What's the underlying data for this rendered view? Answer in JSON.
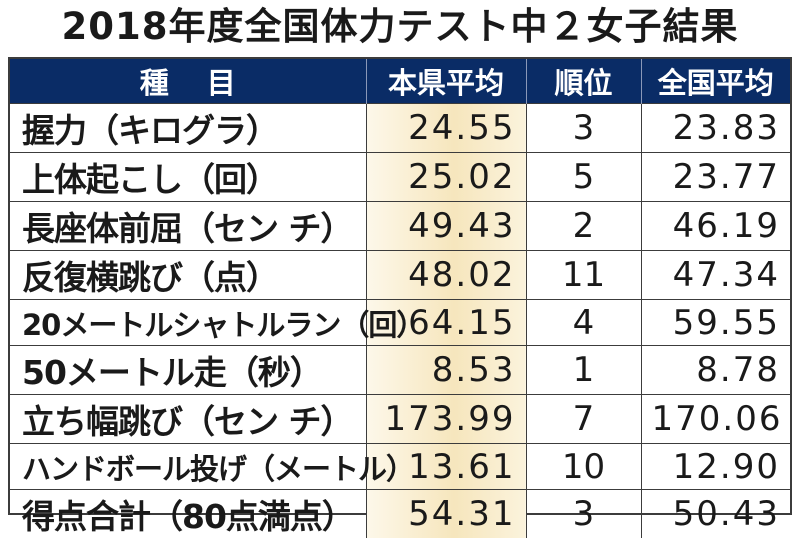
{
  "title": "2018年度全国体力テスト中２女子結果",
  "headers": {
    "item": "種目",
    "pref_avg": "本県平均",
    "rank": "順位",
    "national_avg": "全国平均"
  },
  "rows": [
    {
      "item": "握力（キログラ）",
      "pref_avg": "24.55",
      "rank": "3",
      "national_avg": "23.83"
    },
    {
      "item": "上体起こし（回）",
      "pref_avg": "25.02",
      "rank": "5",
      "national_avg": "23.77"
    },
    {
      "item": "長座体前屈（セン チ）",
      "pref_avg": "49.43",
      "rank": "2",
      "national_avg": "46.19"
    },
    {
      "item": "反復横跳び（点）",
      "pref_avg": "48.02",
      "rank": "11",
      "national_avg": "47.34"
    },
    {
      "item": "20メートルシャトルラン（回）",
      "pref_avg": "64.15",
      "rank": "4",
      "national_avg": "59.55"
    },
    {
      "item": "50メートル走（秒）",
      "pref_avg": "8.53",
      "rank": "1",
      "national_avg": "8.78"
    },
    {
      "item": "立ち幅跳び（セン チ）",
      "pref_avg": "173.99",
      "rank": "7",
      "national_avg": "170.06"
    },
    {
      "item": "ハンドボール投げ（メートル）",
      "pref_avg": "13.61",
      "rank": "10",
      "national_avg": "12.90"
    },
    {
      "item": "得点合計（80点満点）",
      "pref_avg": "54.31",
      "rank": "3",
      "national_avg": "50.43"
    }
  ],
  "colors": {
    "header_bg": "#0a2c66",
    "header_text": "#ffffff",
    "highlight_column": "#f6e6bd"
  }
}
